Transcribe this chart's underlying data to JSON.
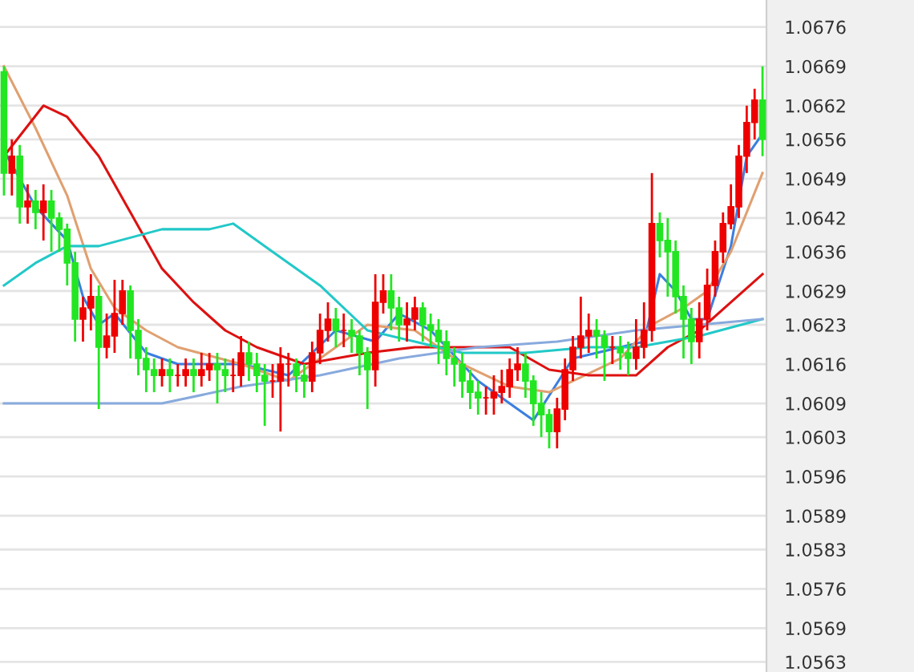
{
  "chart_data": {
    "type": "candlestick",
    "categories": [
      null,
      null,
      null,
      null,
      null,
      null,
      null,
      null,
      null,
      null,
      null,
      null,
      null,
      null,
      null,
      null,
      null,
      null,
      null,
      null,
      null,
      null,
      null,
      null,
      null,
      null,
      null,
      null,
      null,
      null,
      null,
      null,
      null,
      null,
      null,
      null,
      null,
      null,
      null,
      null,
      null,
      null,
      null,
      null,
      null,
      null,
      null,
      null,
      null,
      null,
      null,
      null,
      null,
      null,
      null,
      null,
      null,
      null,
      null,
      null,
      null,
      null,
      null,
      null,
      null,
      null,
      null,
      null,
      null,
      null,
      null,
      null,
      null,
      null,
      null,
      null,
      null,
      null,
      null,
      null,
      null,
      null,
      null,
      null,
      null,
      null,
      null,
      null,
      null,
      null,
      null,
      null,
      null,
      null,
      null,
      null,
      null
    ],
    "ohlc": [
      [
        1.0668,
        1.0669,
        1.0646,
        1.065
      ],
      [
        1.065,
        1.0656,
        1.0646,
        1.0653
      ],
      [
        1.0653,
        1.0655,
        1.0641,
        1.0644
      ],
      [
        1.0644,
        1.0648,
        1.0641,
        1.0645
      ],
      [
        1.0645,
        1.0647,
        1.064,
        1.0643
      ],
      [
        1.0643,
        1.0648,
        1.0638,
        1.0645
      ],
      [
        1.0645,
        1.0647,
        1.0636,
        1.0642
      ],
      [
        1.0642,
        1.0643,
        1.0636,
        1.064
      ],
      [
        1.064,
        1.0641,
        1.063,
        1.0634
      ],
      [
        1.0634,
        1.0636,
        1.062,
        1.0624
      ],
      [
        1.0624,
        1.0628,
        1.062,
        1.0626
      ],
      [
        1.0626,
        1.0632,
        1.0622,
        1.0628
      ],
      [
        1.0628,
        1.063,
        1.0608,
        1.0619
      ],
      [
        1.0619,
        1.0625,
        1.0617,
        1.0621
      ],
      [
        1.0621,
        1.0631,
        1.0618,
        1.0625
      ],
      [
        1.0625,
        1.0631,
        1.0623,
        1.0629
      ],
      [
        1.0629,
        1.063,
        1.0617,
        1.0622
      ],
      [
        1.0622,
        1.0624,
        1.0614,
        1.0617
      ],
      [
        1.0617,
        1.0619,
        1.0611,
        1.0615
      ],
      [
        1.0615,
        1.0617,
        1.0611,
        1.0614
      ],
      [
        1.0614,
        1.0617,
        1.0612,
        1.0615
      ],
      [
        1.0615,
        1.0617,
        1.0611,
        1.0614
      ],
      [
        1.0614,
        1.0616,
        1.0612,
        1.0614
      ],
      [
        1.0614,
        1.0617,
        1.0612,
        1.0615
      ],
      [
        1.0615,
        1.0617,
        1.0611,
        1.0614
      ],
      [
        1.0614,
        1.0618,
        1.0612,
        1.0615
      ],
      [
        1.0615,
        1.0618,
        1.0613,
        1.0616
      ],
      [
        1.0616,
        1.0618,
        1.0609,
        1.0615
      ],
      [
        1.0615,
        1.0617,
        1.0611,
        1.0614
      ],
      [
        1.0614,
        1.0617,
        1.0611,
        1.0614
      ],
      [
        1.0614,
        1.0621,
        1.0612,
        1.0618
      ],
      [
        1.0618,
        1.062,
        1.0613,
        1.0616
      ],
      [
        1.0616,
        1.0618,
        1.0611,
        1.0614
      ],
      [
        1.0614,
        1.0616,
        1.0605,
        1.0613
      ],
      [
        1.0613,
        1.0616,
        1.061,
        1.0613
      ],
      [
        1.0613,
        1.0619,
        1.0604,
        1.0616
      ],
      [
        1.0616,
        1.0618,
        1.0612,
        1.0616
      ],
      [
        1.0616,
        1.0617,
        1.0611,
        1.0614
      ],
      [
        1.0614,
        1.0616,
        1.061,
        1.0613
      ],
      [
        1.0613,
        1.062,
        1.0611,
        1.0618
      ],
      [
        1.0618,
        1.0625,
        1.0616,
        1.0622
      ],
      [
        1.0622,
        1.0627,
        1.062,
        1.0624
      ],
      [
        1.0624,
        1.0626,
        1.0619,
        1.0622
      ],
      [
        1.0622,
        1.0625,
        1.0619,
        1.0622
      ],
      [
        1.0622,
        1.0624,
        1.0618,
        1.0621
      ],
      [
        1.0621,
        1.0622,
        1.0614,
        1.0618
      ],
      [
        1.0618,
        1.0619,
        1.0608,
        1.0615
      ],
      [
        1.0615,
        1.0632,
        1.0612,
        1.0627
      ],
      [
        1.0627,
        1.0632,
        1.0625,
        1.0629
      ],
      [
        1.0629,
        1.0632,
        1.0622,
        1.0626
      ],
      [
        1.0626,
        1.0628,
        1.062,
        1.0623
      ],
      [
        1.0623,
        1.0627,
        1.062,
        1.0624
      ],
      [
        1.0624,
        1.0628,
        1.0622,
        1.0626
      ],
      [
        1.0626,
        1.0627,
        1.062,
        1.0623
      ],
      [
        1.0623,
        1.0625,
        1.0619,
        1.0622
      ],
      [
        1.0622,
        1.0624,
        1.0616,
        1.062
      ],
      [
        1.062,
        1.0622,
        1.0614,
        1.0617
      ],
      [
        1.0617,
        1.0619,
        1.0612,
        1.0616
      ],
      [
        1.0616,
        1.0618,
        1.061,
        1.0613
      ],
      [
        1.0613,
        1.0615,
        1.0608,
        1.0611
      ],
      [
        1.0611,
        1.0613,
        1.0607,
        1.061
      ],
      [
        1.061,
        1.0612,
        1.0607,
        1.061
      ],
      [
        1.061,
        1.0614,
        1.0607,
        1.0611
      ],
      [
        1.0611,
        1.0615,
        1.0609,
        1.0612
      ],
      [
        1.0612,
        1.0617,
        1.061,
        1.0615
      ],
      [
        1.0615,
        1.0619,
        1.0613,
        1.0616
      ],
      [
        1.0616,
        1.0618,
        1.061,
        1.0613
      ],
      [
        1.0613,
        1.0614,
        1.0605,
        1.0609
      ],
      [
        1.0609,
        1.0611,
        1.0603,
        1.0607
      ],
      [
        1.0607,
        1.0608,
        1.0601,
        1.0604
      ],
      [
        1.0604,
        1.061,
        1.0601,
        1.0608
      ],
      [
        1.0608,
        1.0617,
        1.0606,
        1.0615
      ],
      [
        1.0615,
        1.0621,
        1.0613,
        1.0619
      ],
      [
        1.0619,
        1.0628,
        1.0617,
        1.0621
      ],
      [
        1.0621,
        1.0625,
        1.0618,
        1.0622
      ],
      [
        1.0622,
        1.0624,
        1.0617,
        1.0621
      ],
      [
        1.0621,
        1.0622,
        1.0613,
        1.0619
      ],
      [
        1.0619,
        1.0621,
        1.0616,
        1.0619
      ],
      [
        1.0619,
        1.0621,
        1.0615,
        1.0618
      ],
      [
        1.0618,
        1.062,
        1.0614,
        1.0617
      ],
      [
        1.0617,
        1.0624,
        1.0615,
        1.0619
      ],
      [
        1.0619,
        1.0627,
        1.0617,
        1.0622
      ],
      [
        1.0622,
        1.065,
        1.062,
        1.0641
      ],
      [
        1.0641,
        1.0643,
        1.0635,
        1.0638
      ],
      [
        1.0638,
        1.0642,
        1.0628,
        1.0636
      ],
      [
        1.0636,
        1.0638,
        1.0625,
        1.0628
      ],
      [
        1.0628,
        1.063,
        1.0617,
        1.0624
      ],
      [
        1.0624,
        1.0626,
        1.0616,
        1.062
      ],
      [
        1.062,
        1.0627,
        1.0617,
        1.0624
      ],
      [
        1.0624,
        1.0633,
        1.0622,
        1.063
      ],
      [
        1.063,
        1.0638,
        1.0628,
        1.0636
      ],
      [
        1.0636,
        1.0643,
        1.0634,
        1.0641
      ],
      [
        1.0641,
        1.0648,
        1.064,
        1.0644
      ],
      [
        1.0644,
        1.0655,
        1.0642,
        1.0653
      ],
      [
        1.0653,
        1.0662,
        1.065,
        1.0659
      ],
      [
        1.0659,
        1.0665,
        1.0656,
        1.0663
      ],
      [
        1.0663,
        1.0669,
        1.0653,
        1.0656
      ]
    ],
    "colors": [
      "#22e622",
      "#ee0000",
      "#22e622",
      "#ee0000",
      "#22e622",
      "#ee0000",
      "#22e622",
      "#22e622",
      "#22e622",
      "#22e622",
      "#ee0000",
      "#ee0000",
      "#22e622",
      "#ee0000",
      "#ee0000",
      "#ee0000",
      "#22e622",
      "#22e622",
      "#22e622",
      "#22e622",
      "#ee0000",
      "#22e622",
      "#ee0000",
      "#ee0000",
      "#22e622",
      "#ee0000",
      "#ee0000",
      "#22e622",
      "#22e622",
      "#ee0000",
      "#ee0000",
      "#22e622",
      "#22e622",
      "#22e622",
      "#ee0000",
      "#ee0000",
      "#ee0000",
      "#22e622",
      "#22e622",
      "#ee0000",
      "#ee0000",
      "#ee0000",
      "#22e622",
      "#ee0000",
      "#22e622",
      "#22e622",
      "#22e622",
      "#ee0000",
      "#ee0000",
      "#22e622",
      "#22e622",
      "#ee0000",
      "#ee0000",
      "#22e622",
      "#22e622",
      "#22e622",
      "#22e622",
      "#22e622",
      "#22e622",
      "#22e622",
      "#22e622",
      "#ee0000",
      "#ee0000",
      "#ee0000",
      "#ee0000",
      "#ee0000",
      "#22e622",
      "#22e622",
      "#22e622",
      "#22e622",
      "#ee0000",
      "#ee0000",
      "#ee0000",
      "#ee0000",
      "#ee0000",
      "#22e622",
      "#22e622",
      "#ee0000",
      "#22e622",
      "#22e622",
      "#ee0000",
      "#ee0000",
      "#ee0000",
      "#22e622",
      "#22e622",
      "#22e622",
      "#22e622",
      "#22e622",
      "#ee0000",
      "#ee0000",
      "#ee0000",
      "#ee0000",
      "#ee0000",
      "#ee0000",
      "#ee0000",
      "#ee0000",
      "#22e622"
    ],
    "series": [
      {
        "type": "line",
        "color": "#3b7fe0",
        "values": [
          1.0654,
          null,
          null,
          null,
          1.0644,
          null,
          null,
          null,
          1.0638,
          null,
          1.0628,
          null,
          1.0623,
          null,
          1.0625,
          null,
          null,
          null,
          1.0618,
          null,
          null,
          null,
          1.0616,
          null,
          null,
          null,
          null,
          null,
          null,
          null,
          1.0616,
          null,
          null,
          null,
          null,
          null,
          1.0614,
          null,
          null,
          null,
          null,
          null,
          1.0622,
          null,
          null,
          null,
          null,
          1.062,
          null,
          null,
          1.0625,
          null,
          null,
          null,
          1.0622,
          null,
          null,
          null,
          null,
          null,
          1.0613,
          null,
          null,
          null,
          null,
          null,
          null,
          1.0606,
          null,
          null,
          null,
          null,
          1.0617,
          null,
          null,
          null,
          null,
          null,
          1.0619,
          null,
          null,
          1.062,
          null,
          1.0632,
          null,
          1.0629,
          null,
          1.0624,
          null,
          1.0624,
          null,
          null,
          1.0637,
          null,
          1.0653,
          null,
          1.0657
        ]
      },
      {
        "type": "line",
        "color": "#e0a070",
        "values": [
          1.0669,
          null,
          null,
          null,
          1.0658,
          null,
          null,
          null,
          1.0646,
          null,
          null,
          1.0633,
          null,
          null,
          1.0626,
          null,
          null,
          null,
          1.0622,
          null,
          null,
          null,
          1.0619,
          null,
          null,
          null,
          null,
          null,
          null,
          null,
          1.0616,
          null,
          null,
          null,
          null,
          null,
          1.0613,
          null,
          null,
          null,
          1.0617,
          null,
          null,
          null,
          null,
          null,
          1.0623,
          null,
          null,
          null,
          null,
          null,
          1.0622,
          null,
          null,
          null,
          null,
          null,
          1.0616,
          null,
          null,
          null,
          null,
          null,
          1.0612,
          null,
          null,
          null,
          null,
          1.0611,
          null,
          null,
          1.0613,
          null,
          null,
          null,
          null,
          null,
          1.0617,
          null,
          null,
          null,
          1.0623,
          null,
          null,
          null,
          1.0626,
          null,
          null,
          1.0629,
          null,
          null,
          1.0636,
          null,
          null,
          null,
          1.065
        ]
      },
      {
        "type": "line",
        "color": "#dd1111",
        "values": [
          1.0653,
          null,
          null,
          null,
          null,
          1.0662,
          null,
          null,
          1.066,
          null,
          null,
          null,
          1.0653,
          null,
          null,
          null,
          1.0643,
          null,
          null,
          null,
          1.0633,
          null,
          null,
          null,
          1.0627,
          null,
          null,
          null,
          1.0622,
          null,
          null,
          null,
          1.0619,
          null,
          null,
          null,
          null,
          null,
          1.0616,
          null,
          null,
          null,
          null,
          null,
          null,
          null,
          1.0618,
          null,
          null,
          null,
          null,
          null,
          1.0619,
          null,
          null,
          null,
          null,
          null,
          1.0619,
          null,
          null,
          null,
          null,
          null,
          1.0619,
          null,
          null,
          null,
          null,
          1.0615,
          null,
          null,
          null,
          null,
          1.0614,
          null,
          null,
          null,
          null,
          null,
          1.0614,
          null,
          null,
          null,
          1.0619,
          null,
          null,
          null,
          1.0622,
          null,
          null,
          null,
          1.0627,
          null,
          null,
          null,
          1.0632
        ]
      },
      {
        "type": "line",
        "color": "#22c8c8",
        "values": [
          1.063,
          null,
          null,
          null,
          1.0634,
          null,
          null,
          null,
          1.0637,
          null,
          null,
          null,
          1.0637,
          null,
          null,
          null,
          null,
          null,
          null,
          null,
          1.064,
          null,
          null,
          null,
          null,
          null,
          1.064,
          null,
          null,
          1.0641,
          null,
          null,
          null,
          null,
          1.0636,
          null,
          null,
          null,
          null,
          null,
          1.063,
          null,
          null,
          null,
          null,
          null,
          1.0622,
          null,
          null,
          null,
          null,
          null,
          1.062,
          null,
          null,
          null,
          null,
          null,
          1.0618,
          null,
          null,
          null,
          null,
          null,
          null,
          null,
          1.0618,
          null,
          null,
          null,
          null,
          null,
          null,
          null,
          1.0619,
          null,
          null,
          null,
          null,
          null,
          1.0619,
          null,
          null,
          null,
          null,
          null,
          null,
          null,
          1.0621,
          null,
          null,
          null,
          null,
          null,
          null,
          null,
          1.0624
        ]
      },
      {
        "type": "line",
        "color": "#88aadd",
        "values": [
          1.0609,
          null,
          null,
          null,
          null,
          null,
          null,
          null,
          null,
          null,
          null,
          null,
          1.0609,
          null,
          null,
          null,
          null,
          null,
          null,
          null,
          1.0609,
          null,
          null,
          null,
          null,
          null,
          null,
          null,
          null,
          null,
          1.0612,
          null,
          null,
          null,
          null,
          null,
          null,
          null,
          null,
          null,
          1.0614,
          null,
          null,
          null,
          null,
          null,
          null,
          null,
          null,
          null,
          1.0617,
          null,
          null,
          null,
          null,
          null,
          null,
          null,
          null,
          null,
          1.0619,
          null,
          null,
          null,
          null,
          null,
          null,
          null,
          null,
          null,
          1.062,
          null,
          null,
          null,
          null,
          null,
          null,
          null,
          null,
          null,
          1.0622,
          null,
          null,
          null,
          null,
          null,
          null,
          null,
          1.0623,
          null,
          null,
          null,
          null,
          null,
          null,
          null,
          1.0624
        ]
      }
    ],
    "ylim": [
      1.05612,
      1.06808
    ],
    "yticks": [
      1.0676,
      1.0669,
      1.0662,
      1.0656,
      1.0649,
      1.0642,
      1.0636,
      1.0629,
      1.0623,
      1.0616,
      1.0609,
      1.0603,
      1.0596,
      1.0589,
      1.0583,
      1.0576,
      1.0569,
      1.0563
    ],
    "grid": "y",
    "tick_labels": "y"
  }
}
